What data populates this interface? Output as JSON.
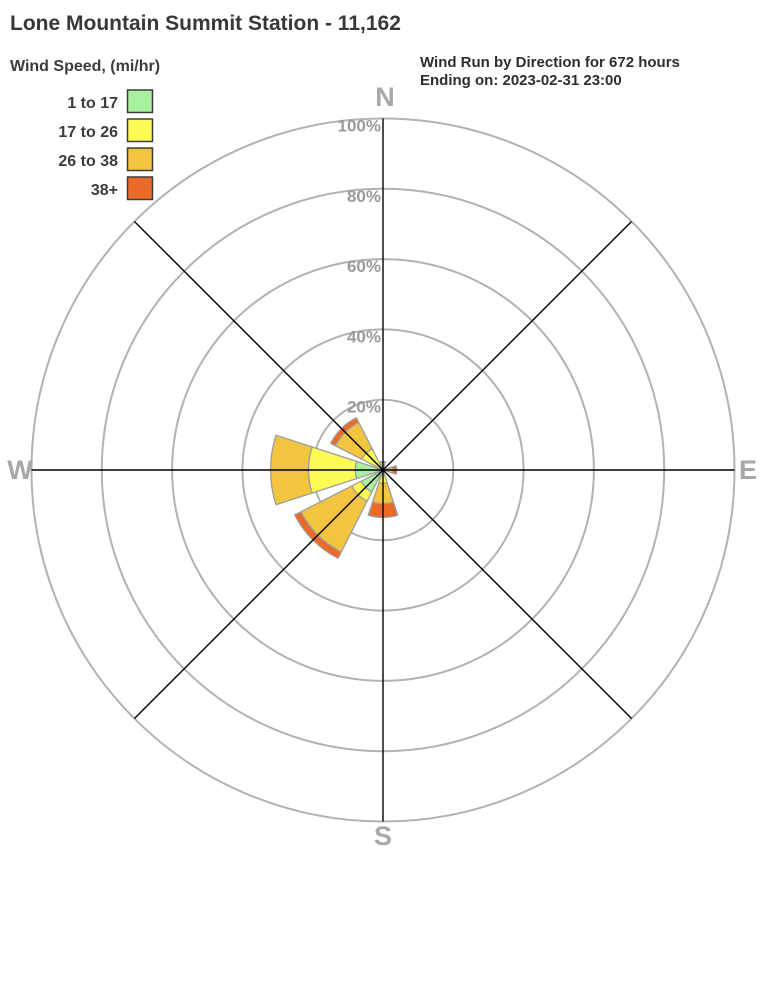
{
  "header": {
    "title": "Lone Mountain Summit Station - 11,162",
    "legend_title": "Wind Speed, (mi/hr)",
    "info_line1": "Wind Run by Direction for 672 hours",
    "info_line2": "Ending on: 2023-02-31 23:00"
  },
  "legend": {
    "items": [
      {
        "label": "1 to 17",
        "color": "#a9f0a1"
      },
      {
        "label": "17 to 26",
        "color": "#fcfc55"
      },
      {
        "label": "26 to 38",
        "color": "#f2c43f"
      },
      {
        "label": "38+",
        "color": "#eb6a28"
      }
    ]
  },
  "compass": {
    "north": "N",
    "east": "E",
    "south": "S",
    "west": "W"
  },
  "colors": {
    "ring": "#b2b2b2",
    "axis": "#000000",
    "compass_label": "#a8a8a8",
    "ring_label": "#9a9a9a",
    "petal_outline": "#9e9e9e",
    "swatch_border": "#3c3c3c"
  },
  "chart_data": {
    "type": "wind_rose",
    "title": "Lone Mountain Summit Station - 11,162",
    "subtitle": "Wind Run by Direction for 672 hours Ending on: 2023-02-31 23:00",
    "units": "percent of wind run hours",
    "directions": [
      "N",
      "NE",
      "E",
      "SE",
      "S",
      "SW",
      "W",
      "NW"
    ],
    "petal_width_deg": 36,
    "rings_percent": [
      20,
      40,
      60,
      80,
      100
    ],
    "ring_labels": [
      "20%",
      "40%",
      "60%",
      "80%",
      "100%"
    ],
    "radial_max_percent": 100,
    "speed_bins": [
      "1 to 17",
      "17 to 26",
      "26 to 38",
      "38+"
    ],
    "bin_colors": [
      "#a9f0a1",
      "#fcfc55",
      "#f2c43f",
      "#eb6a28"
    ],
    "series": [
      {
        "direction": "N",
        "values": [
          0,
          0,
          2.4,
          0
        ]
      },
      {
        "direction": "NE",
        "values": [
          0,
          0,
          0,
          0
        ]
      },
      {
        "direction": "E",
        "values": [
          0,
          0,
          2.8,
          1.1
        ]
      },
      {
        "direction": "SE",
        "values": [
          0,
          0,
          0,
          0
        ]
      },
      {
        "direction": "S",
        "values": [
          0,
          3.8,
          5.8,
          3.9
        ]
      },
      {
        "direction": "SW",
        "values": [
          7.0,
          3.0,
          16.2,
          2.0
        ]
      },
      {
        "direction": "W",
        "values": [
          7.9,
          13.3,
          10.8,
          0
        ]
      },
      {
        "direction": "NW",
        "values": [
          0,
          6.8,
          8.4,
          1.5
        ]
      }
    ]
  }
}
